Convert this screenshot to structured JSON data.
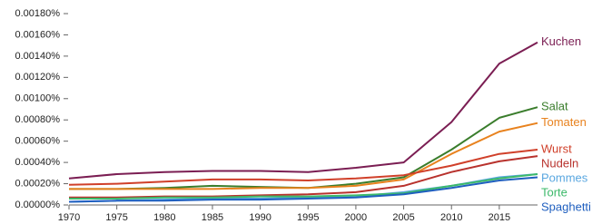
{
  "chart_data": {
    "type": "line",
    "x": [
      1970,
      1975,
      1980,
      1985,
      1990,
      1995,
      2000,
      2005,
      2010,
      2015,
      2019
    ],
    "series": [
      {
        "name": "Kuchen",
        "color": "#7b1e53",
        "values": [
          0.00025,
          0.00029,
          0.00031,
          0.00032,
          0.00032,
          0.00031,
          0.00035,
          0.0004,
          0.00078,
          0.00133,
          0.00153
        ]
      },
      {
        "name": "Salat",
        "color": "#3a7d2c",
        "values": [
          0.00015,
          0.00015,
          0.00016,
          0.00018,
          0.00017,
          0.00016,
          0.0002,
          0.00026,
          0.00052,
          0.00082,
          0.00092
        ]
      },
      {
        "name": "Tomaten",
        "color": "#e8821e",
        "values": [
          0.00015,
          0.00015,
          0.00015,
          0.00015,
          0.00016,
          0.00016,
          0.00018,
          0.00024,
          0.00048,
          0.00069,
          0.00077
        ]
      },
      {
        "name": "Wurst",
        "color": "#d0402a",
        "values": [
          0.00019,
          0.0002,
          0.00022,
          0.00024,
          0.00024,
          0.00023,
          0.00025,
          0.00028,
          0.00037,
          0.00048,
          0.00052
        ]
      },
      {
        "name": "Nudeln",
        "color": "#b8322d",
        "values": [
          7e-05,
          7e-05,
          8e-05,
          8e-05,
          9e-05,
          0.0001,
          0.00012,
          0.00018,
          0.00031,
          0.00041,
          0.00046
        ]
      },
      {
        "name": "Pommes",
        "color": "#5aa7e0",
        "values": [
          3e-05,
          4e-05,
          5e-05,
          6e-05,
          6e-05,
          7e-05,
          8e-05,
          0.00012,
          0.00018,
          0.00026,
          0.00029
        ]
      },
      {
        "name": "Torte",
        "color": "#3cb96a",
        "values": [
          6e-05,
          6e-05,
          7e-05,
          7e-05,
          8e-05,
          8e-05,
          9e-05,
          0.00011,
          0.00018,
          0.00025,
          0.00029
        ]
      },
      {
        "name": "Spaghetti",
        "color": "#1f5fbf",
        "values": [
          3e-05,
          4e-05,
          4e-05,
          5e-05,
          5e-05,
          6e-05,
          7e-05,
          0.0001,
          0.00016,
          0.00023,
          0.00026
        ]
      }
    ],
    "xlim": [
      1970,
      2019
    ],
    "xticks": [
      1970,
      1975,
      1980,
      1985,
      1990,
      1995,
      2000,
      2005,
      2010,
      2015
    ],
    "ylim": [
      0,
      0.0018
    ],
    "yticks": [
      {
        "value": 0,
        "label": "0.00000%"
      },
      {
        "value": 0.0002,
        "label": "0.00020%"
      },
      {
        "value": 0.0004,
        "label": "0.00040%"
      },
      {
        "value": 0.0006,
        "label": "0.00060%"
      },
      {
        "value": 0.0008,
        "label": "0.00080%"
      },
      {
        "value": 0.001,
        "label": "0.00100%"
      },
      {
        "value": 0.0012,
        "label": "0.00120%"
      },
      {
        "value": 0.0014,
        "label": "0.00140%"
      },
      {
        "value": 0.0016,
        "label": "0.00160%"
      },
      {
        "value": 0.0018,
        "label": "0.00180%"
      }
    ]
  }
}
